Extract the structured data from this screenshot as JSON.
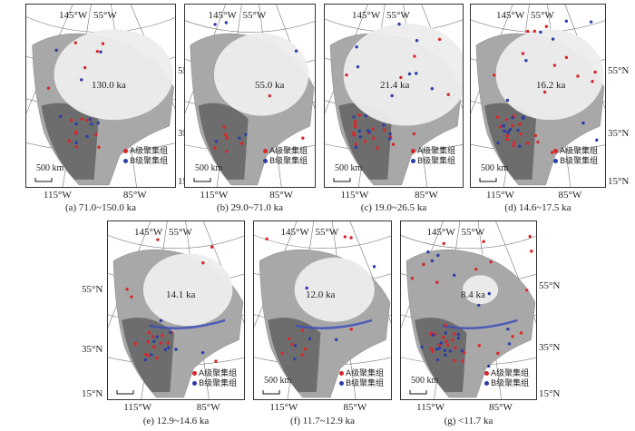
{
  "labels": {
    "lon_145w": "145°W",
    "lon_55w": "55°W",
    "lon_115w": "115°W",
    "lon_85w": "85°W",
    "lat_55n": "55°N",
    "lat_35n": "35°N",
    "lat_15n": "15°N"
  },
  "scale_bar": "500 km",
  "legend": {
    "a_label": "A级聚集组",
    "b_label": "B级聚集组",
    "a_color": "#d9262a",
    "b_color": "#2b3ea8"
  },
  "panels": [
    {
      "id": "a",
      "caption": "(a) 71.0~150.0 ka",
      "age": "130.0 ka"
    },
    {
      "id": "b",
      "caption": "(b) 29.0~71.0 ka",
      "age": "55.0 ka"
    },
    {
      "id": "c",
      "caption": "(c) 19.0~26.5 ka",
      "age": "21.4 ka"
    },
    {
      "id": "d",
      "caption": "(d) 14.6~17.5 ka",
      "age": "16.2 ka"
    },
    {
      "id": "e",
      "caption": "(e) 12.9~14.6 ka",
      "age": "14.1 ka"
    },
    {
      "id": "f",
      "caption": "(f) 11.7~12.9 ka",
      "age": "12.0 ka"
    },
    {
      "id": "g",
      "caption": "(g) <11.7 ka",
      "age": "8.4 ka"
    }
  ]
}
